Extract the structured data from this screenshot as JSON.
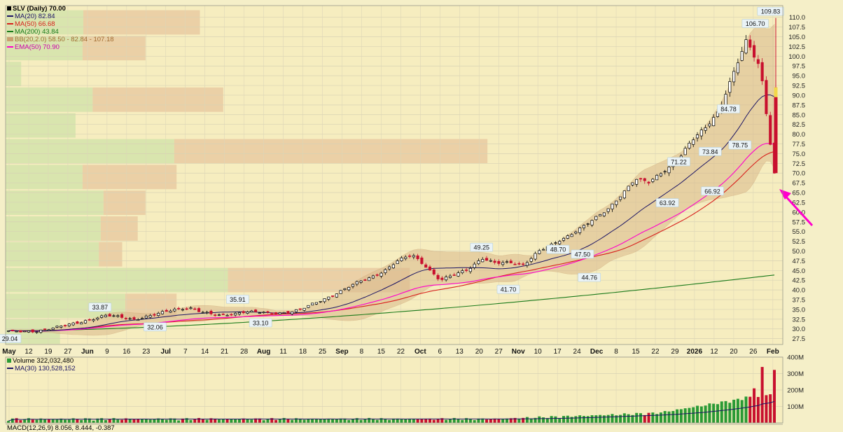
{
  "legend": {
    "price": "SLV (Daily) 70.00",
    "ma20": "MA(20) 82.84",
    "ma50": "MA(50) 66.68",
    "ma200": "MA(200) 43.84",
    "bb": "BB(20,2.0) 58.50 - 82.84 - 107.18",
    "ema50": "EMA(50) 70.90"
  },
  "volume_legend": {
    "volume": "Volume 322,032,480",
    "ma30": "MA(30) 130,528,152"
  },
  "macd_legend": "MACD(12,26,9) 8.056, 8.444, -0.387",
  "colors": {
    "background": "#f5efc8",
    "up": "#2a9a35",
    "down": "#c8102e",
    "ma20": "#1b1464",
    "ma50": "#d8201c",
    "ma200": "#1a7a1a",
    "ema50": "#ff00cc",
    "band": "#d9b98c",
    "arrow": "#ff00cc"
  },
  "chart_data": {
    "type": "candlestick",
    "title": "SLV (Daily)",
    "ylim": [
      26,
      113
    ],
    "y_ticks": [
      "110.0",
      "107.5",
      "105.0",
      "102.5",
      "100.0",
      "97.5",
      "95.0",
      "92.5",
      "90.0",
      "87.5",
      "85.0",
      "82.5",
      "80.0",
      "77.5",
      "75.0",
      "72.5",
      "70.0",
      "67.5",
      "65.0",
      "62.5",
      "60.0",
      "57.5",
      "55.0",
      "52.5",
      "50.0",
      "47.5",
      "45.0",
      "42.5",
      "40.0",
      "37.5",
      "35.0",
      "32.5",
      "30.0",
      "27.5"
    ],
    "x_labels": [
      {
        "t": "May",
        "bold": true
      },
      {
        "t": "12"
      },
      {
        "t": "19"
      },
      {
        "t": "27"
      },
      {
        "t": "Jun",
        "bold": true
      },
      {
        "t": "9"
      },
      {
        "t": "16"
      },
      {
        "t": "23"
      },
      {
        "t": "Jul",
        "bold": true
      },
      {
        "t": "7"
      },
      {
        "t": "14"
      },
      {
        "t": "21"
      },
      {
        "t": "28"
      },
      {
        "t": "Aug",
        "bold": true
      },
      {
        "t": "11"
      },
      {
        "t": "18"
      },
      {
        "t": "25"
      },
      {
        "t": "Sep",
        "bold": true
      },
      {
        "t": "8"
      },
      {
        "t": "15"
      },
      {
        "t": "22"
      },
      {
        "t": "Oct",
        "bold": true
      },
      {
        "t": "6"
      },
      {
        "t": "13"
      },
      {
        "t": "20"
      },
      {
        "t": "27"
      },
      {
        "t": "Nov",
        "bold": true
      },
      {
        "t": "10"
      },
      {
        "t": "17"
      },
      {
        "t": "24"
      },
      {
        "t": "Dec",
        "bold": true
      },
      {
        "t": "8"
      },
      {
        "t": "15"
      },
      {
        "t": "22"
      },
      {
        "t": "29"
      },
      {
        "t": "2026",
        "bold": true
      },
      {
        "t": "12"
      },
      {
        "t": "20"
      },
      {
        "t": "26"
      },
      {
        "t": "Feb",
        "bold": true
      }
    ],
    "annotations": [
      "29.04",
      "33.87",
      "32.06",
      "35.91",
      "33.10",
      "49.25",
      "41.70",
      "48.70",
      "47.50",
      "44.76",
      "71.22",
      "63.92",
      "73.84",
      "66.92",
      "84.78",
      "78.75",
      "106.70",
      "109.83"
    ],
    "close_anchors": [
      29.5,
      29.2,
      29.4,
      30.2,
      30.8,
      31.5,
      32.6,
      33.5,
      33.0,
      32.4,
      33.3,
      34.1,
      35.0,
      35.5,
      34.2,
      33.4,
      33.8,
      34.5,
      34.2,
      34.0,
      34.3,
      35.0,
      36.6,
      38.2,
      40.0,
      41.8,
      43.2,
      45.0,
      47.6,
      49.0,
      46.0,
      42.5,
      43.8,
      45.3,
      48.2,
      46.8,
      47.0,
      46.5,
      49.8,
      51.5,
      53.5,
      55.8,
      58.0,
      60.5,
      64.5,
      68.5,
      67.5,
      70.5,
      73.0,
      78.0,
      81.5,
      86.0,
      95.0,
      104.0,
      97.0,
      70.0
    ],
    "volume": {
      "ylim": [
        0,
        400
      ],
      "y_ticks": [
        "400M",
        "300M",
        "200M",
        "100M"
      ],
      "last": 322.0,
      "ma30_last": 130.5
    },
    "volume_profile_bands": 13
  }
}
